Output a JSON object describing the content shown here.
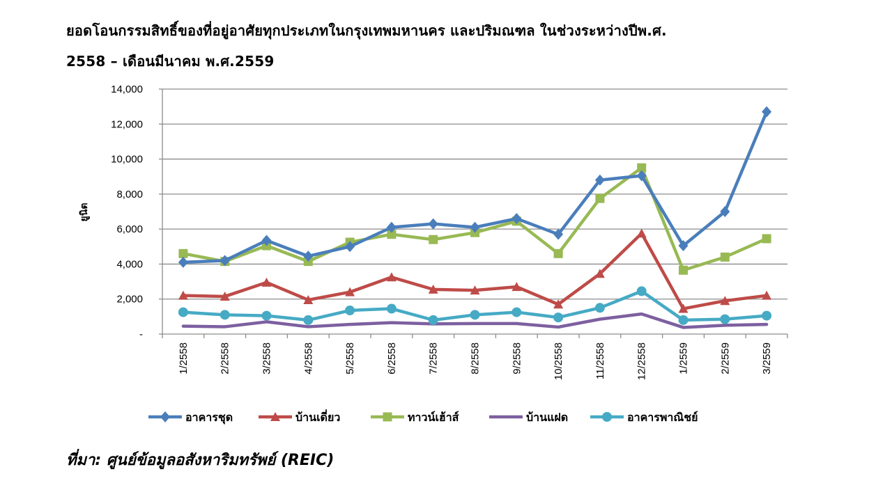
{
  "title_line1": "ยอดโอนกรรมสิทธิ์ของที่อยู่อาศัยทุกประเภทในกรุงเทพมหานคร  และปริมณฑล  ในช่วงระหว่างปีพ.ศ.",
  "title_line2": "2558 – เดือนมีนาคม พ.ศ.2559",
  "source": "ที่มา: ศูนย์ข้อมูลอสังหาริมทรัพย์ (REIC)",
  "chart_data": {
    "type": "line",
    "title": "ยอดโอนกรรมสิทธิ์ของที่อยู่อาศัยทุกประเภทในกรุงเทพมหานคร  และปริมณฑล  ในช่วงระหว่างปีพ.ศ. 2558 – เดือนมีนาคม พ.ศ.2559",
    "xlabel": "",
    "ylabel": "ยูนิต",
    "ylim": [
      0,
      14000
    ],
    "yticks": [
      0,
      2000,
      4000,
      6000,
      8000,
      10000,
      12000,
      14000
    ],
    "ytick_labels": [
      "-",
      "2,000",
      "4,000",
      "6,000",
      "8,000",
      "10,000",
      "12,000",
      "14,000"
    ],
    "grid": true,
    "legend_position": "bottom",
    "categories": [
      "1/2558",
      "2/2558",
      "3/2558",
      "4/2558",
      "5/2558",
      "6/2558",
      "7/2558",
      "8/2558",
      "9/2558",
      "10/2558",
      "11/2558",
      "12/2558",
      "1/2559",
      "2/2559",
      "3/2559"
    ],
    "series": [
      {
        "name": "อาคารชุด",
        "color": "#4A7EBB",
        "marker": "diamond",
        "values": [
          4100,
          4200,
          5350,
          4450,
          5000,
          6100,
          6300,
          6100,
          6600,
          5700,
          8800,
          9050,
          5050,
          7000,
          12700
        ]
      },
      {
        "name": "บ้านเดี่ยว",
        "color": "#BE4B48",
        "marker": "triangle",
        "values": [
          2200,
          2150,
          2950,
          1950,
          2400,
          3250,
          2550,
          2500,
          2700,
          1700,
          3450,
          5750,
          1450,
          1900,
          2200
        ]
      },
      {
        "name": "ทาวน์เฮ้าส์",
        "color": "#98B954",
        "marker": "square",
        "values": [
          4600,
          4150,
          5050,
          4150,
          5250,
          5700,
          5400,
          5800,
          6450,
          4600,
          7750,
          9500,
          3650,
          4400,
          5450
        ]
      },
      {
        "name": "บ้านแฝด",
        "color": "#7D60A0",
        "marker": "none",
        "values": [
          450,
          420,
          700,
          420,
          550,
          650,
          580,
          600,
          600,
          400,
          850,
          1150,
          380,
          500,
          550
        ]
      },
      {
        "name": "อาคารพาณิชย์",
        "color": "#46AAC5",
        "marker": "circle",
        "values": [
          1250,
          1100,
          1050,
          800,
          1350,
          1450,
          800,
          1100,
          1250,
          950,
          1500,
          2450,
          800,
          850,
          1050
        ]
      }
    ]
  }
}
